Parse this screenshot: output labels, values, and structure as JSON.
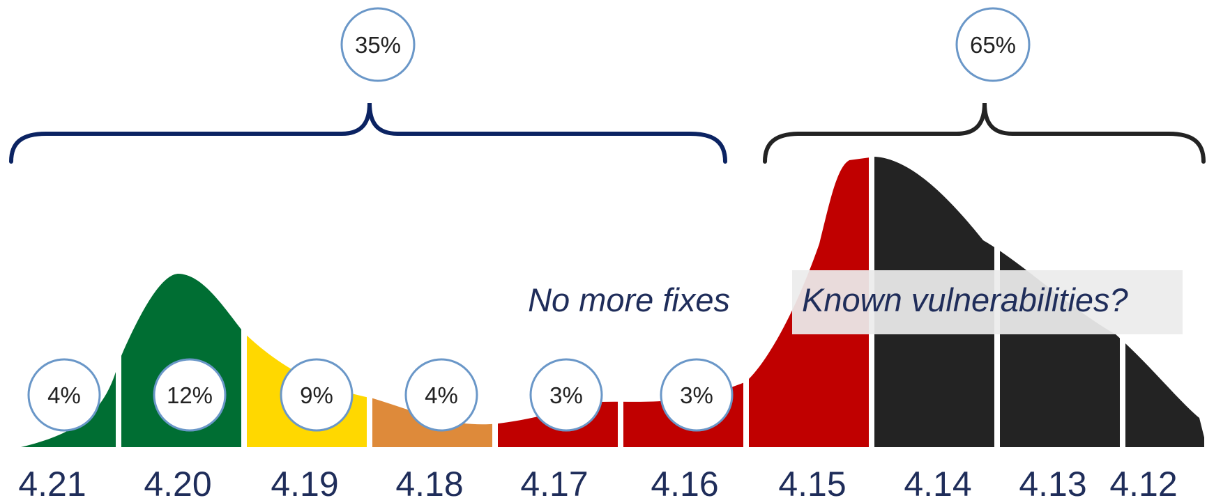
{
  "colors": {
    "green": "#006e33",
    "yellow": "#ffd800",
    "orange": "#de8a3a",
    "red": "#c00000",
    "black": "#232323",
    "navy": "#0b2362",
    "bubble_border": "#6a97c8",
    "annotation_band": "#ececec"
  },
  "chart_data": {
    "type": "area",
    "categories": [
      "4.21",
      "4.20",
      "4.19",
      "4.18",
      "4.17",
      "4.16",
      "4.15",
      "4.14",
      "4.13",
      "4.12"
    ],
    "segment_colors": [
      "green",
      "green",
      "yellow",
      "orange",
      "red",
      "red",
      "red",
      "black",
      "black",
      "black"
    ],
    "segment_labels": [
      {
        "category": "4.21",
        "label": "4%"
      },
      {
        "category": "4.20",
        "label": "12%"
      },
      {
        "category": "4.19",
        "label": "9%"
      },
      {
        "category": "4.18",
        "label": "4%"
      },
      {
        "category": "4.17",
        "label": "3%"
      },
      {
        "category": "4.16",
        "label": "3%"
      }
    ],
    "groups": [
      {
        "categories": [
          "4.21",
          "4.20",
          "4.19",
          "4.18",
          "4.17",
          "4.16"
        ],
        "label": "35%",
        "color": "navy"
      },
      {
        "categories": [
          "4.15",
          "4.14",
          "4.13",
          "4.12"
        ],
        "label": "65%",
        "color": "black"
      }
    ],
    "annotations": [
      "No more fixes",
      "Known vulnerabilities?"
    ]
  }
}
